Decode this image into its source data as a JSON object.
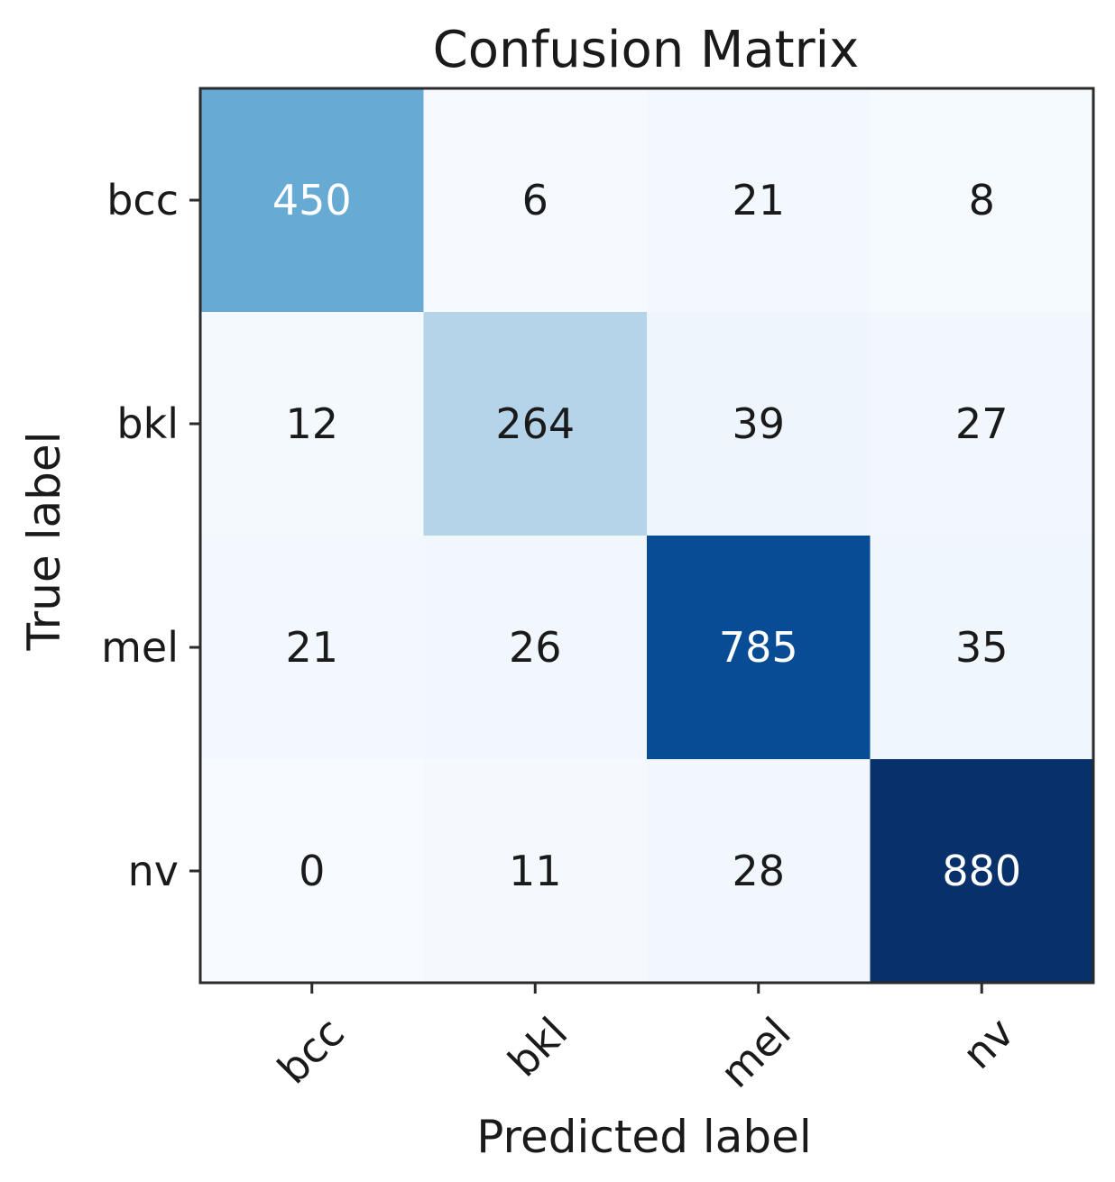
{
  "chart_data": {
    "type": "heatmap",
    "title": "Confusion Matrix",
    "xlabel": "Predicted label",
    "ylabel": "True label",
    "x_categories": [
      "bcc",
      "bkl",
      "mel",
      "nv"
    ],
    "y_categories": [
      "bcc",
      "bkl",
      "mel",
      "nv"
    ],
    "values": [
      [
        450,
        6,
        21,
        8
      ],
      [
        12,
        264,
        39,
        27
      ],
      [
        21,
        26,
        785,
        35
      ],
      [
        0,
        11,
        28,
        880
      ]
    ],
    "colormap": "Blues",
    "colormap_stops": [
      "#f7fbff",
      "#deebf7",
      "#c6dbef",
      "#9ecae1",
      "#6baed6",
      "#4292c6",
      "#2171b5",
      "#08519c",
      "#08306b"
    ],
    "value_range": [
      0,
      880
    ],
    "grid": false,
    "legend": "none"
  }
}
